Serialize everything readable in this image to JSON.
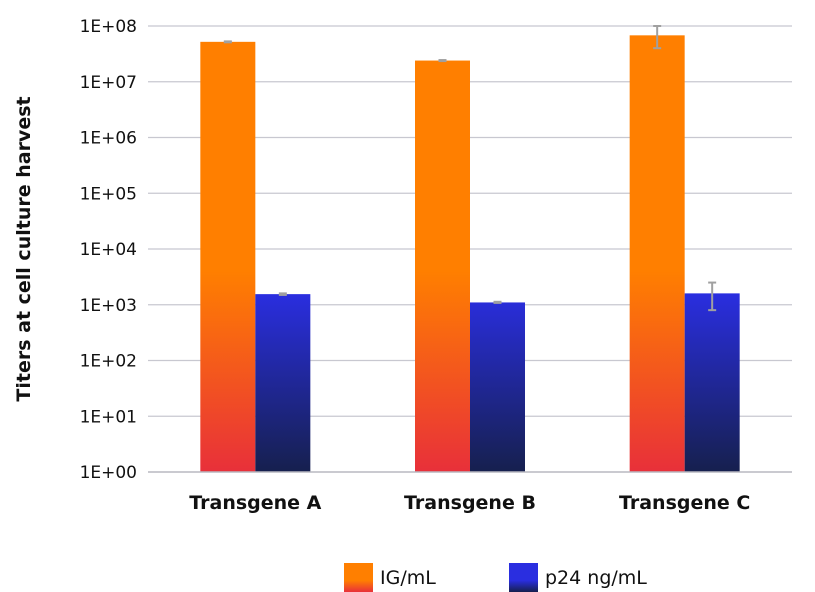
{
  "chart_data": {
    "type": "bar",
    "scale": "log",
    "ylabel": "Titers at cell culture harvest",
    "xlabel": "",
    "ylim": [
      1,
      100000000
    ],
    "y_ticks": [
      "1E+00",
      "1E+01",
      "1E+02",
      "1E+03",
      "1E+04",
      "1E+05",
      "1E+06",
      "1E+07",
      "1E+08"
    ],
    "grid": true,
    "legend_position": "bottom",
    "categories": [
      "Transgene A",
      "Transgene B",
      "Transgene C"
    ],
    "series": [
      {
        "name": "IG/mL",
        "color_top": "#ff7f00",
        "color_bottom": "#e8303a",
        "values": [
          52000000,
          24000000,
          68000000
        ],
        "error_low": [
          51000000,
          23500000,
          40000000
        ],
        "error_high": [
          53000000,
          24500000,
          100000000
        ]
      },
      {
        "name": "p24 ng/mL",
        "color_top": "#2a2ee0",
        "color_bottom": "#16204e",
        "values": [
          1550,
          1100,
          1600
        ],
        "error_low": [
          1500,
          1080,
          800
        ],
        "error_high": [
          1600,
          1130,
          2500
        ]
      }
    ],
    "grid_color": "#c8c8d0",
    "error_bar_color": "#a0a0a0"
  }
}
